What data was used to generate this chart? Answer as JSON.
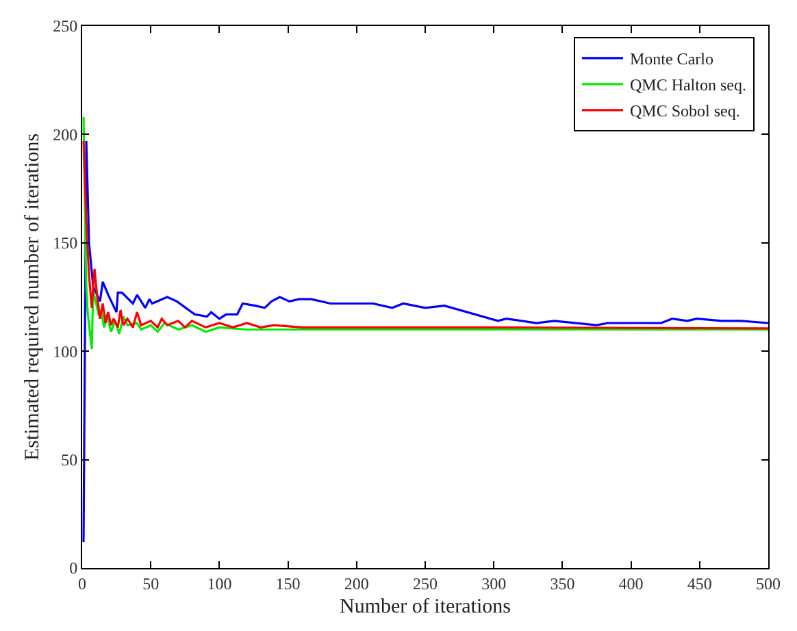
{
  "chart_data": {
    "type": "line",
    "xlabel": "Number of iterations",
    "ylabel": "Estimated required number of iterations",
    "xlim": [
      0,
      500
    ],
    "ylim": [
      0,
      250
    ],
    "xticks": [
      0,
      50,
      100,
      150,
      200,
      250,
      300,
      350,
      400,
      450,
      500
    ],
    "yticks": [
      0,
      50,
      100,
      150,
      200,
      250
    ],
    "legend": "top right",
    "line_style": "solid",
    "marker": "none",
    "series": [
      {
        "name": "Monte Carlo",
        "color": "#0000ff",
        "x": [
          1,
          3,
          5,
          8,
          13,
          15,
          19,
          25,
          26,
          29,
          37,
          40,
          46,
          49,
          51,
          62,
          69,
          82,
          91,
          94,
          100,
          105,
          113,
          117,
          126,
          133,
          138,
          144,
          151,
          158,
          167,
          181,
          193,
          212,
          226,
          234,
          250,
          264,
          303,
          309,
          331,
          344,
          375,
          383,
          422,
          430,
          441,
          448,
          466,
          480,
          500
        ],
        "values": [
          12,
          197,
          150,
          130,
          123,
          132,
          126,
          118,
          127,
          127,
          122,
          126,
          120,
          124,
          122,
          125,
          123,
          117,
          116,
          118,
          115,
          117,
          117,
          122,
          121,
          120,
          123,
          125,
          123,
          124,
          124,
          122,
          122,
          122,
          120,
          122,
          120,
          121,
          114,
          115,
          113,
          114,
          112,
          113,
          113,
          115,
          114,
          115,
          114,
          114,
          113
        ]
      },
      {
        "name": "QMC Halton seq.",
        "color": "#00ee00",
        "x": [
          1,
          3,
          4,
          7,
          8,
          12,
          14,
          16,
          18,
          21,
          24,
          27,
          30,
          33,
          40,
          43,
          50,
          55,
          60,
          70,
          80,
          90,
          100,
          120,
          150,
          200,
          300,
          400,
          500
        ],
        "values": [
          208,
          130,
          118,
          101,
          128,
          117,
          118,
          111,
          117,
          109,
          114,
          108,
          116,
          112,
          113,
          110,
          112,
          109,
          113,
          110,
          112,
          109,
          111,
          110,
          110,
          110,
          110,
          110,
          110
        ]
      },
      {
        "name": "QMC Sobol seq.",
        "color": "#ff0000",
        "x": [
          1,
          3,
          5,
          7,
          9,
          11,
          13,
          15,
          17,
          19,
          21,
          23,
          26,
          28,
          30,
          33,
          37,
          40,
          43,
          50,
          55,
          58,
          62,
          70,
          75,
          80,
          90,
          100,
          110,
          120,
          130,
          140,
          160,
          200,
          300,
          500
        ],
        "values": [
          197,
          160,
          135,
          120,
          138,
          125,
          115,
          122,
          113,
          118,
          112,
          115,
          111,
          119,
          112,
          115,
          111,
          118,
          112,
          114,
          111,
          115,
          112,
          114,
          111,
          114,
          111,
          113,
          111,
          113,
          111,
          112,
          111,
          111,
          111,
          110.5
        ]
      }
    ]
  }
}
